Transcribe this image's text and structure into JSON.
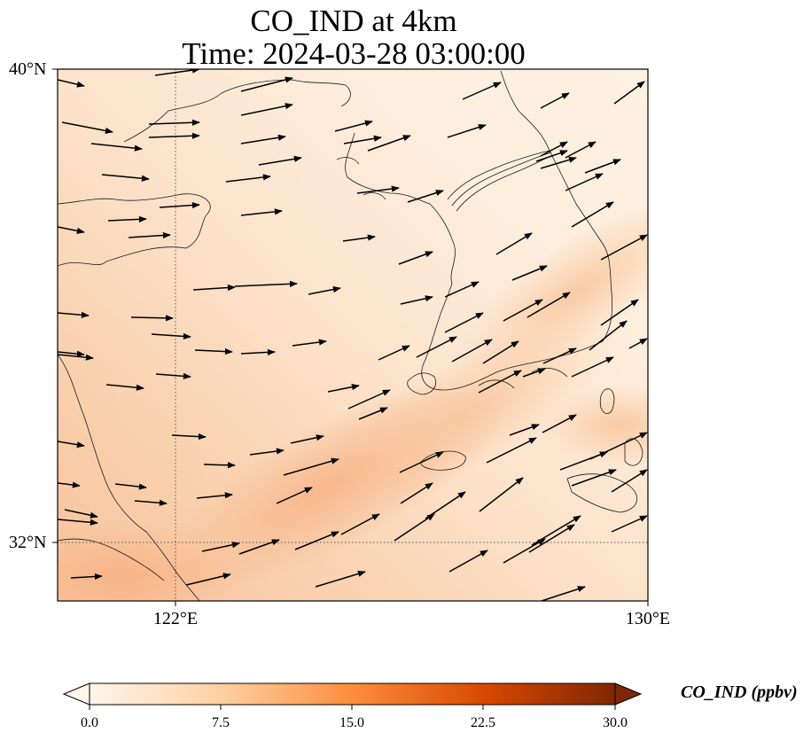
{
  "title_line1": "CO_IND at 4km",
  "title_line2": "Time: 2024-03-28 03:00:00",
  "lat_labels": [
    "40°N",
    "32°N"
  ],
  "lon_labels": [
    "122°E",
    "130°E"
  ],
  "colorbar": {
    "label": "CO_IND (ppbv)",
    "ticks": [
      "0.0",
      "7.5",
      "15.0",
      "22.5",
      "30.0"
    ],
    "colors": [
      "#fff5eb",
      "#fdd0a2",
      "#fd8d3c",
      "#d94801",
      "#7f2704"
    ]
  },
  "gridline_style": "dotted",
  "colors": {
    "coastline": "#1a1a1a",
    "wind_vector": "#000000",
    "field_low": "#fdf2e4",
    "field_high": "#f9b88a"
  }
}
